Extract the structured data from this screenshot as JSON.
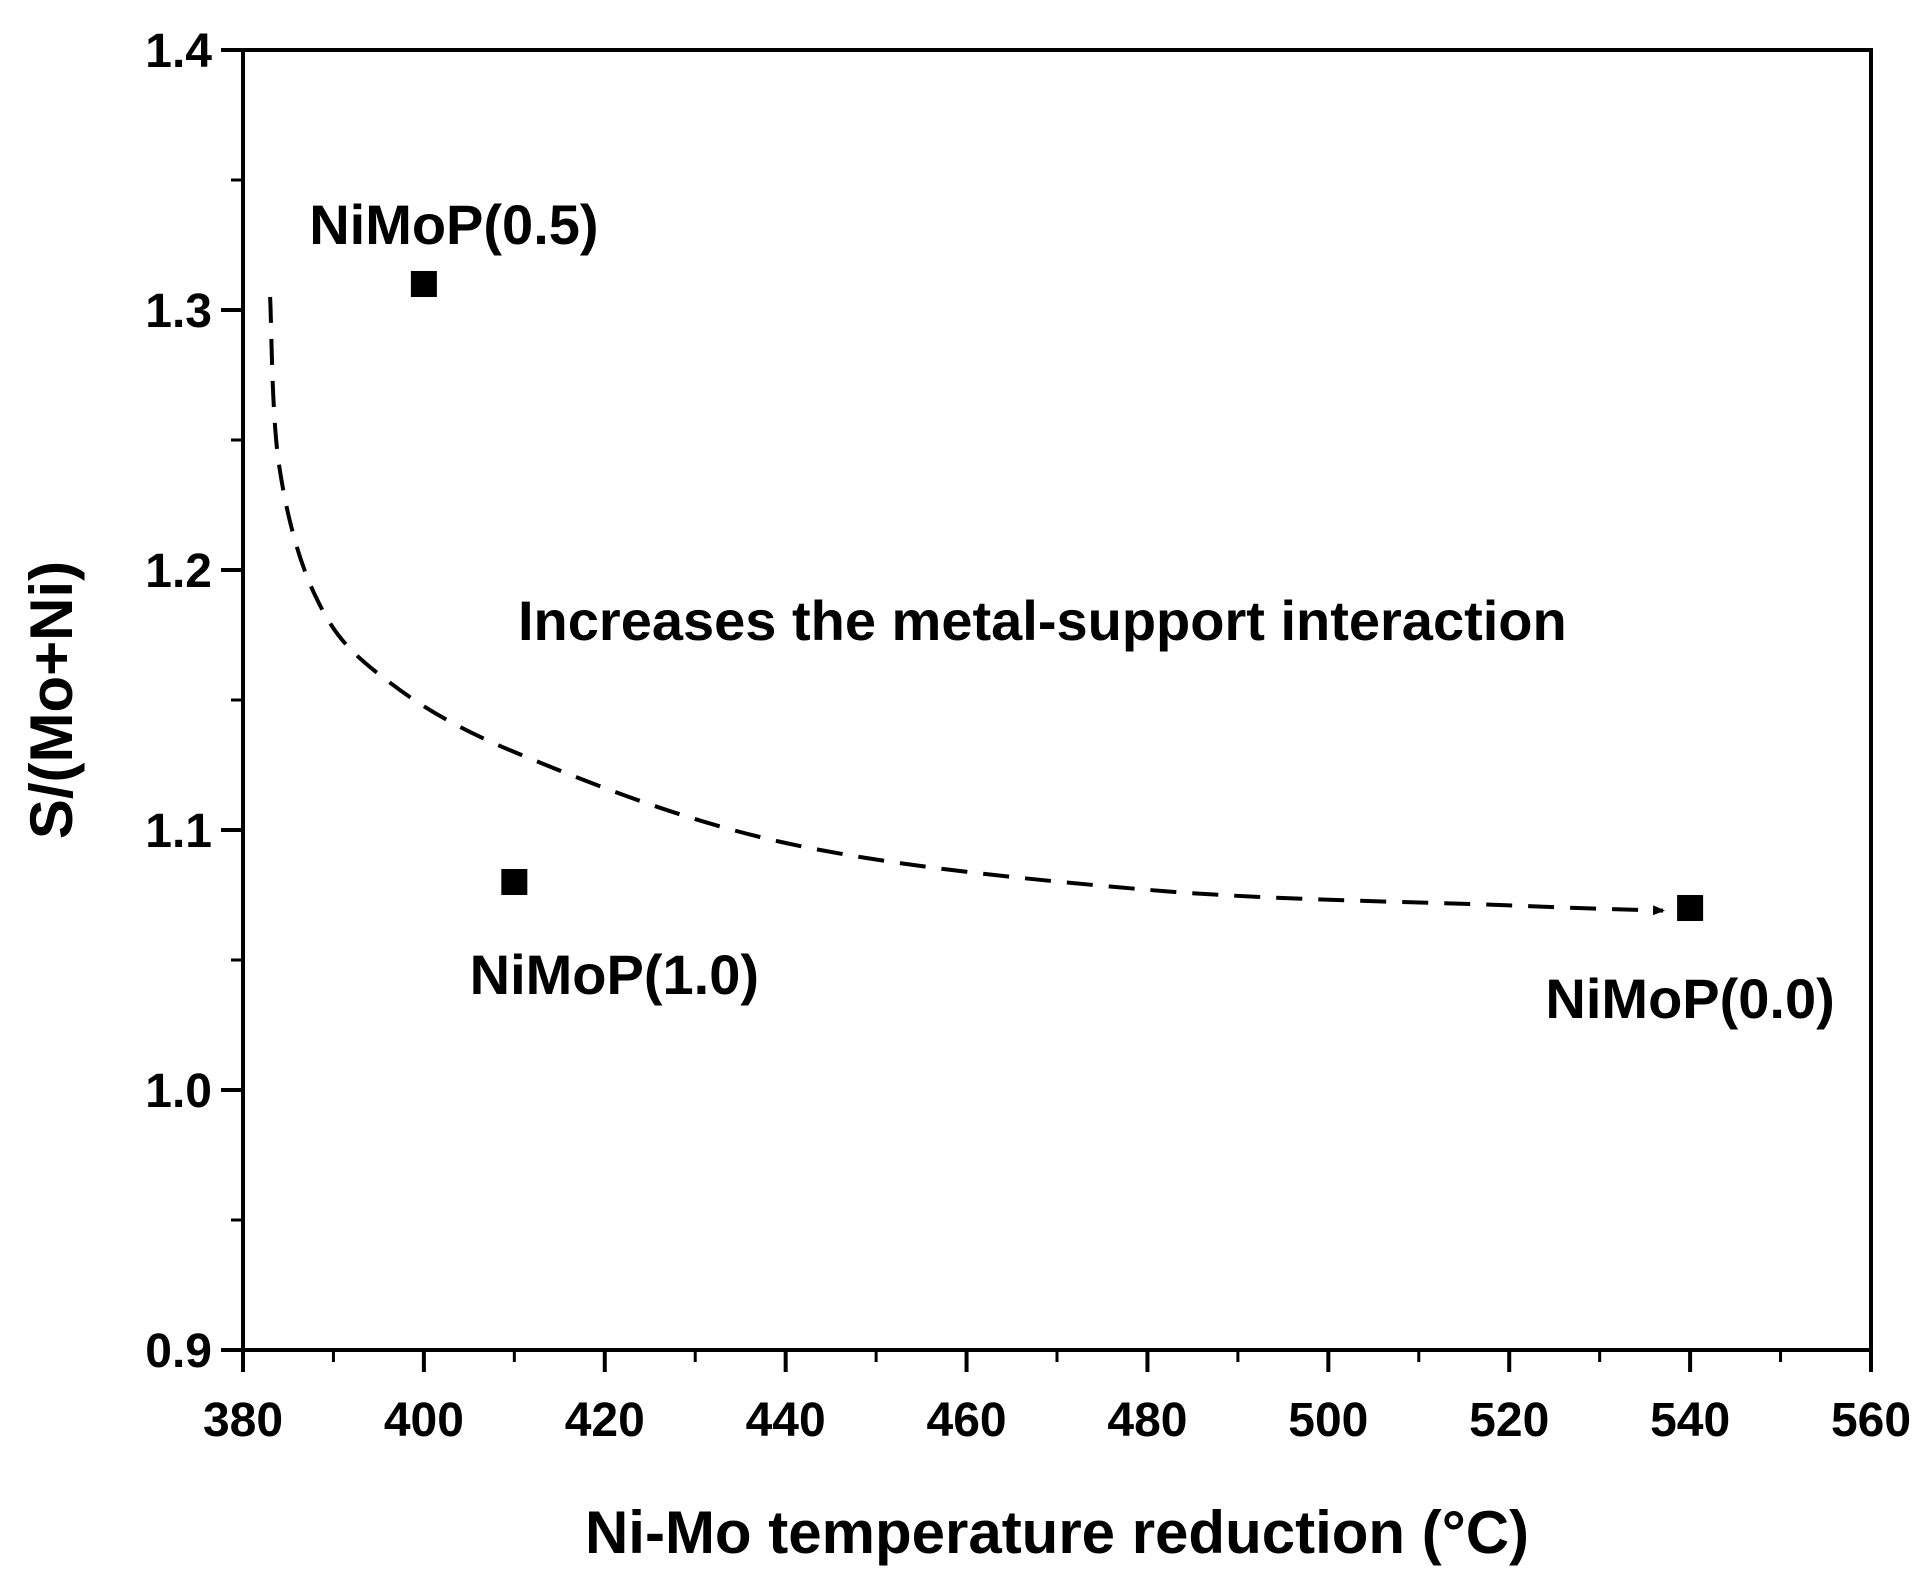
{
  "chart_data": {
    "type": "scatter",
    "title": "",
    "xlabel": "Ni-Mo temperature reduction (°C)",
    "ylabel": "S/(Mo+Ni)",
    "xlim": [
      380,
      560
    ],
    "ylim": [
      0.9,
      1.4
    ],
    "x_ticks": [
      "380",
      "400",
      "420",
      "440",
      "460",
      "480",
      "500",
      "520",
      "540",
      "560"
    ],
    "y_ticks": [
      "0.9",
      "1.0",
      "1.1",
      "1.2",
      "1.3",
      "1.4"
    ],
    "series": [
      {
        "name": "NiMoP",
        "marker": "square",
        "color": "#000000",
        "points": [
          {
            "label": "NiMoP(0.5)",
            "x": 400,
            "y": 1.31
          },
          {
            "label": "NiMoP(1.0)",
            "x": 410,
            "y": 1.08
          },
          {
            "label": "NiMoP(0.0)",
            "x": 540,
            "y": 1.07
          }
        ]
      }
    ],
    "trend_curve": {
      "style": "dashed-arrow",
      "points": [
        [
          383,
          1.305
        ],
        [
          384,
          1.24
        ],
        [
          388,
          1.19
        ],
        [
          395,
          1.16
        ],
        [
          410,
          1.13
        ],
        [
          440,
          1.095
        ],
        [
          480,
          1.077
        ],
        [
          520,
          1.071
        ],
        [
          537,
          1.069
        ]
      ]
    },
    "annotation": "Increases the metal-support interaction"
  }
}
